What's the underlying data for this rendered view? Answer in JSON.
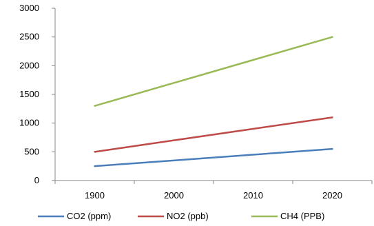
{
  "chart_data": {
    "type": "line",
    "categories": [
      "1900",
      "2000",
      "2010",
      "2020"
    ],
    "y_ticks": [
      "0",
      "500",
      "1000",
      "1500",
      "2000",
      "2500",
      "3000"
    ],
    "ylim": [
      0,
      3000
    ],
    "grid": false,
    "legend_position": "bottom",
    "series": [
      {
        "name": "CO2 (ppm)",
        "color": "#4a7ebb",
        "values": [
          250,
          350,
          450,
          550
        ]
      },
      {
        "name": "NO2 (ppb)",
        "color": "#be4b48",
        "values": [
          500,
          700,
          900,
          1100
        ]
      },
      {
        "name": "CH4 (PPB)",
        "color": "#98b954",
        "values": [
          1300,
          1700,
          2100,
          2500
        ]
      }
    ]
  }
}
